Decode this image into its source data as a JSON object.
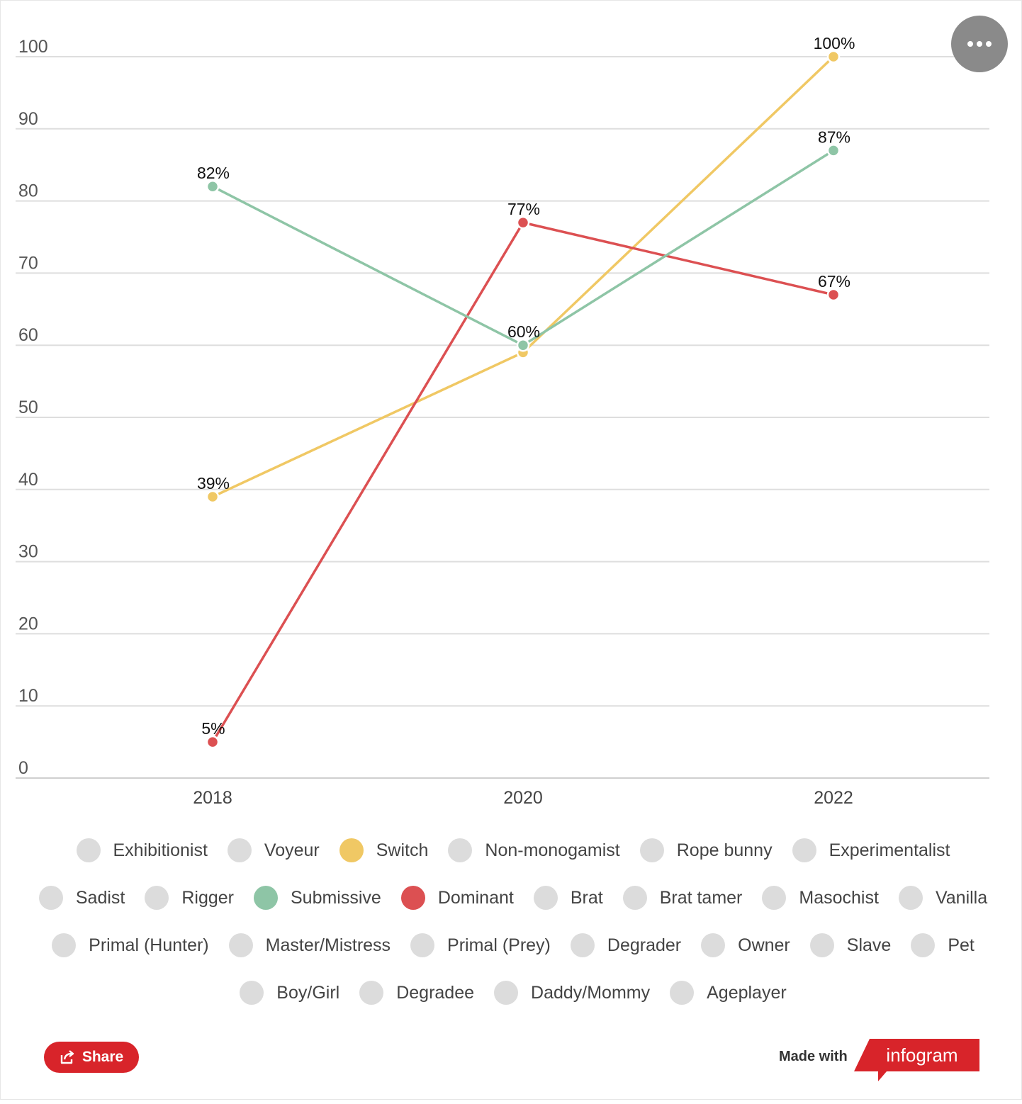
{
  "chart_data": {
    "type": "line",
    "categories": [
      "2018",
      "2020",
      "2022"
    ],
    "ylim": [
      0,
      100
    ],
    "yticks": [
      0,
      10,
      20,
      30,
      40,
      50,
      60,
      70,
      80,
      90,
      100
    ],
    "grid": true,
    "legend_position": "bottom",
    "series": [
      {
        "name": "Switch",
        "color": "#f0c864",
        "values": [
          39,
          59,
          100
        ],
        "labels": [
          "39%",
          "",
          "100%"
        ]
      },
      {
        "name": "Dominant",
        "color": "#dc5052",
        "values": [
          5,
          77,
          67
        ],
        "labels": [
          "5%",
          "77%",
          "67%"
        ]
      },
      {
        "name": "Submissive",
        "color": "#8ec5a6",
        "values": [
          82,
          60,
          87
        ],
        "labels": [
          "82%",
          "60%",
          "87%"
        ]
      }
    ]
  },
  "legend": {
    "items": [
      {
        "label": "Exhibitionist",
        "color": "#dcdcdc"
      },
      {
        "label": "Voyeur",
        "color": "#dcdcdc"
      },
      {
        "label": "Switch",
        "color": "#f0c864"
      },
      {
        "label": "Non-monogamist",
        "color": "#dcdcdc"
      },
      {
        "label": "Rope bunny",
        "color": "#dcdcdc"
      },
      {
        "label": "Experimentalist",
        "color": "#dcdcdc"
      },
      {
        "label": "Sadist",
        "color": "#dcdcdc"
      },
      {
        "label": "Rigger",
        "color": "#dcdcdc"
      },
      {
        "label": "Submissive",
        "color": "#8ec5a6"
      },
      {
        "label": "Dominant",
        "color": "#dc5052"
      },
      {
        "label": "Brat",
        "color": "#dcdcdc"
      },
      {
        "label": "Brat tamer",
        "color": "#dcdcdc"
      },
      {
        "label": "Masochist",
        "color": "#dcdcdc"
      },
      {
        "label": "Vanilla",
        "color": "#dcdcdc"
      },
      {
        "label": "Primal (Hunter)",
        "color": "#dcdcdc"
      },
      {
        "label": "Master/Mistress",
        "color": "#dcdcdc"
      },
      {
        "label": "Primal (Prey)",
        "color": "#dcdcdc"
      },
      {
        "label": "Degrader",
        "color": "#dcdcdc"
      },
      {
        "label": "Owner",
        "color": "#dcdcdc"
      },
      {
        "label": "Slave",
        "color": "#dcdcdc"
      },
      {
        "label": "Pet",
        "color": "#dcdcdc"
      },
      {
        "label": "Boy/Girl",
        "color": "#dcdcdc"
      },
      {
        "label": "Degradee",
        "color": "#dcdcdc"
      },
      {
        "label": "Daddy/Mommy",
        "color": "#dcdcdc"
      },
      {
        "label": "Ageplayer",
        "color": "#dcdcdc"
      }
    ]
  },
  "footer": {
    "share_label": "Share",
    "made_with_label": "Made with",
    "brand_label": "infogram",
    "brand_color": "#d8242a"
  },
  "icons": {
    "menu": "more-dots-icon",
    "share": "share-icon"
  }
}
